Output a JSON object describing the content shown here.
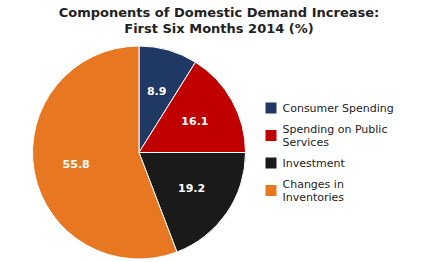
{
  "chart_data": {
    "type": "pie",
    "title": "Components of Domestic Demand Increase:\nFirst Six Months 2014 (%)",
    "categories": [
      "Consumer Spending",
      "Spending on Public\nServices",
      "Investment",
      "Changes in\nInventories"
    ],
    "values": [
      8.9,
      16.1,
      19.2,
      55.8
    ],
    "colors": [
      "#1f3864",
      "#c00000",
      "#1a1a1a",
      "#e87722"
    ],
    "data_labels": true,
    "legend": "right"
  }
}
